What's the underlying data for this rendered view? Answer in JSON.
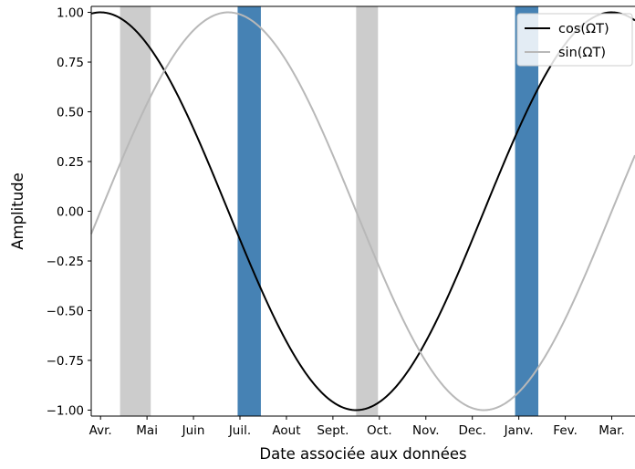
{
  "chart_data": {
    "type": "line",
    "xlabel": "Date associée aux données",
    "ylabel": "Amplitude",
    "xlim": [
      -0.2,
      11.5
    ],
    "ylim": [
      -1.03,
      1.03
    ],
    "x_ticks": [
      {
        "x": 0,
        "label": "Avr."
      },
      {
        "x": 1,
        "label": "Mai"
      },
      {
        "x": 2,
        "label": "Juin"
      },
      {
        "x": 3,
        "label": "Juil."
      },
      {
        "x": 4,
        "label": "Aout"
      },
      {
        "x": 5,
        "label": "Sept."
      },
      {
        "x": 6,
        "label": "Oct."
      },
      {
        "x": 7,
        "label": "Nov."
      },
      {
        "x": 8,
        "label": "Dec."
      },
      {
        "x": 9,
        "label": "Janv."
      },
      {
        "x": 10,
        "label": "Fev."
      },
      {
        "x": 11,
        "label": "Mar."
      }
    ],
    "y_ticks": [
      {
        "y": 1.0,
        "label": "1.00"
      },
      {
        "y": 0.75,
        "label": "0.75"
      },
      {
        "y": 0.5,
        "label": "0.50"
      },
      {
        "y": 0.25,
        "label": "0.25"
      },
      {
        "y": 0.0,
        "label": "0.00"
      },
      {
        "y": -0.25,
        "label": "−0.25"
      },
      {
        "y": -0.5,
        "label": "−0.50"
      },
      {
        "y": -0.75,
        "label": "−0.75"
      },
      {
        "y": -1.0,
        "label": "−1.00"
      }
    ],
    "series": [
      {
        "name": "cos(ΩT)",
        "function": "cos",
        "period": 11,
        "x_start": -0.2,
        "x_end": 11.5,
        "color": "#000000"
      },
      {
        "name": "sin(ΩT)",
        "function": "sin",
        "period": 11,
        "x_start": -0.2,
        "x_end": 11.5,
        "color": "#b8b8b8"
      }
    ],
    "bands": [
      {
        "x_start": 0.42,
        "x_end": 1.08,
        "color": "#cccccc"
      },
      {
        "x_start": 2.95,
        "x_end": 3.45,
        "color": "#4682b4"
      },
      {
        "x_start": 5.5,
        "x_end": 5.97,
        "color": "#cccccc"
      },
      {
        "x_start": 8.92,
        "x_end": 9.42,
        "color": "#4682b4"
      }
    ],
    "legend_position": "top-right",
    "grid": false
  }
}
